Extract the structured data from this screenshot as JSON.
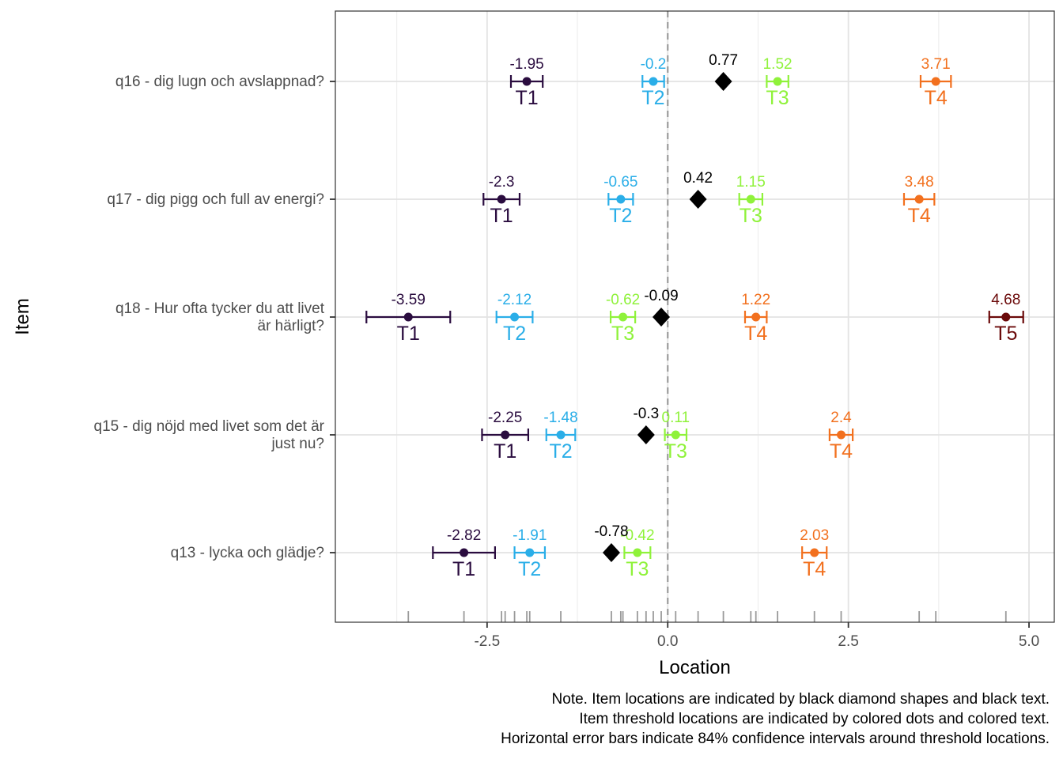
{
  "chart_data": {
    "type": "scatter",
    "xlabel": "Location",
    "ylabel": "Item",
    "xlim": [
      -4.6,
      5.35
    ],
    "x_ticks": [
      -2.5,
      0.0,
      2.5,
      5.0
    ],
    "x_tick_labels": [
      "-2.5",
      "0.0",
      "2.5",
      "5.0"
    ],
    "grid": true,
    "reference_line_x": 0,
    "threshold_colors": {
      "T1": "#2a0c3f",
      "T2": "#2aaee8",
      "T3": "#8ff23a",
      "T4": "#f2701e",
      "T5": "#6b0a0a"
    },
    "item_color": "#000000",
    "items": [
      {
        "name_lines": [
          "q16 - dig lugn och avslappnad?"
        ],
        "location": 0.77,
        "location_label": "0.77",
        "thresholds": [
          {
            "id": "T1",
            "value": -1.95,
            "label": "-1.95",
            "ci": [
              -2.17,
              -1.73
            ]
          },
          {
            "id": "T2",
            "value": -0.2,
            "label": "-0.2",
            "ci": [
              -0.35,
              -0.05
            ]
          },
          {
            "id": "T3",
            "value": 1.52,
            "label": "1.52",
            "ci": [
              1.37,
              1.67
            ]
          },
          {
            "id": "T4",
            "value": 3.71,
            "label": "3.71",
            "ci": [
              3.5,
              3.92
            ]
          }
        ]
      },
      {
        "name_lines": [
          "q17 - dig pigg och full av energi?"
        ],
        "location": 0.42,
        "location_label": "0.42",
        "thresholds": [
          {
            "id": "T1",
            "value": -2.3,
            "label": "-2.3",
            "ci": [
              -2.55,
              -2.05
            ]
          },
          {
            "id": "T2",
            "value": -0.65,
            "label": "-0.65",
            "ci": [
              -0.82,
              -0.48
            ]
          },
          {
            "id": "T3",
            "value": 1.15,
            "label": "1.15",
            "ci": [
              0.99,
              1.31
            ]
          },
          {
            "id": "T4",
            "value": 3.48,
            "label": "3.48",
            "ci": [
              3.27,
              3.69
            ]
          }
        ]
      },
      {
        "name_lines": [
          "q18 - Hur ofta tycker du att livet",
          "är härligt?"
        ],
        "location": -0.09,
        "location_label": "-0.09",
        "thresholds": [
          {
            "id": "T1",
            "value": -3.59,
            "label": "-3.59",
            "ci": [
              -4.17,
              -3.01
            ]
          },
          {
            "id": "T2",
            "value": -2.12,
            "label": "-2.12",
            "ci": [
              -2.37,
              -1.87
            ]
          },
          {
            "id": "T3",
            "value": -0.62,
            "label": "-0.62",
            "ci": [
              -0.79,
              -0.45
            ]
          },
          {
            "id": "T4",
            "value": 1.22,
            "label": "1.22",
            "ci": [
              1.07,
              1.37
            ]
          },
          {
            "id": "T5",
            "value": 4.68,
            "label": "4.68",
            "ci": [
              4.45,
              4.92
            ]
          }
        ]
      },
      {
        "name_lines": [
          "q15 - dig nöjd med livet som det är",
          "just nu?"
        ],
        "location": -0.3,
        "location_label": "-0.3",
        "thresholds": [
          {
            "id": "T1",
            "value": -2.25,
            "label": "-2.25",
            "ci": [
              -2.57,
              -1.93
            ]
          },
          {
            "id": "T2",
            "value": -1.48,
            "label": "-1.48",
            "ci": [
              -1.68,
              -1.28
            ]
          },
          {
            "id": "T3",
            "value": 0.11,
            "label": "0.11",
            "ci": [
              -0.04,
              0.26
            ]
          },
          {
            "id": "T4",
            "value": 2.4,
            "label": "2.4",
            "ci": [
              2.24,
              2.56
            ]
          }
        ]
      },
      {
        "name_lines": [
          "q13 - lycka och glädje?"
        ],
        "location": -0.78,
        "location_label": "-0.78",
        "thresholds": [
          {
            "id": "T1",
            "value": -2.82,
            "label": "-2.82",
            "ci": [
              -3.25,
              -2.39
            ]
          },
          {
            "id": "T2",
            "value": -1.91,
            "label": "-1.91",
            "ci": [
              -2.12,
              -1.7
            ]
          },
          {
            "id": "T3",
            "value": -0.42,
            "label": "-0.42",
            "ci": [
              -0.6,
              -0.24
            ]
          },
          {
            "id": "T4",
            "value": 2.03,
            "label": "2.03",
            "ci": [
              1.86,
              2.2
            ]
          }
        ]
      }
    ],
    "rug_values": [
      -3.59,
      -2.82,
      -2.3,
      -2.25,
      -2.12,
      -1.95,
      -1.91,
      -1.48,
      -0.78,
      -0.65,
      -0.62,
      -0.42,
      -0.3,
      -0.2,
      -0.09,
      0.11,
      0.42,
      0.77,
      1.15,
      1.22,
      1.52,
      2.03,
      2.4,
      3.48,
      3.71,
      4.68
    ],
    "note_lines": [
      "Note. Item locations are indicated by black diamond shapes and black text.",
      "Item threshold locations are indicated by colored dots and colored text.",
      "Horizontal error bars indicate 84% confidence intervals around threshold locations."
    ]
  }
}
